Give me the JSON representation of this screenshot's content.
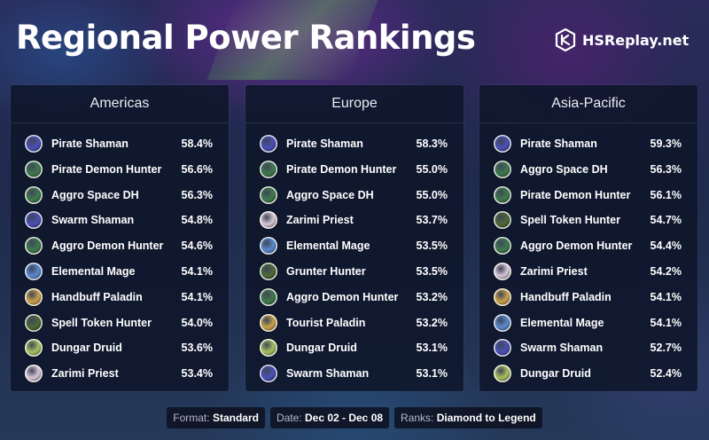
{
  "title": "Regional Power Rankings",
  "brand": {
    "name": "HSReplay.net",
    "icon": "hsreplay-logo-icon"
  },
  "class_colors": {
    "shaman": "#4a4fb8",
    "demon_hunter": "#3f7a4e",
    "priest": "#d9c8d8",
    "mage": "#5a8ad0",
    "paladin": "#c9a24a",
    "hunter": "#4d6a36",
    "druid": "#a8c060"
  },
  "regions": [
    {
      "name": "Americas",
      "decks": [
        {
          "name": "Pirate Shaman",
          "winrate": "58.4%",
          "class": "shaman"
        },
        {
          "name": "Pirate Demon Hunter",
          "winrate": "56.6%",
          "class": "demon_hunter"
        },
        {
          "name": "Aggro Space DH",
          "winrate": "56.3%",
          "class": "demon_hunter"
        },
        {
          "name": "Swarm Shaman",
          "winrate": "54.8%",
          "class": "shaman"
        },
        {
          "name": "Aggro Demon Hunter",
          "winrate": "54.6%",
          "class": "demon_hunter"
        },
        {
          "name": "Elemental Mage",
          "winrate": "54.1%",
          "class": "mage"
        },
        {
          "name": "Handbuff Paladin",
          "winrate": "54.1%",
          "class": "paladin"
        },
        {
          "name": "Spell Token Hunter",
          "winrate": "54.0%",
          "class": "hunter"
        },
        {
          "name": "Dungar Druid",
          "winrate": "53.6%",
          "class": "druid"
        },
        {
          "name": "Zarimi Priest",
          "winrate": "53.4%",
          "class": "priest"
        }
      ]
    },
    {
      "name": "Europe",
      "decks": [
        {
          "name": "Pirate Shaman",
          "winrate": "58.3%",
          "class": "shaman"
        },
        {
          "name": "Pirate Demon Hunter",
          "winrate": "55.0%",
          "class": "demon_hunter"
        },
        {
          "name": "Aggro Space DH",
          "winrate": "55.0%",
          "class": "demon_hunter"
        },
        {
          "name": "Zarimi Priest",
          "winrate": "53.7%",
          "class": "priest"
        },
        {
          "name": "Elemental Mage",
          "winrate": "53.5%",
          "class": "mage"
        },
        {
          "name": "Grunter Hunter",
          "winrate": "53.5%",
          "class": "hunter"
        },
        {
          "name": "Aggro Demon Hunter",
          "winrate": "53.2%",
          "class": "demon_hunter"
        },
        {
          "name": "Tourist Paladin",
          "winrate": "53.2%",
          "class": "paladin"
        },
        {
          "name": "Dungar Druid",
          "winrate": "53.1%",
          "class": "druid"
        },
        {
          "name": "Swarm Shaman",
          "winrate": "53.1%",
          "class": "shaman"
        }
      ]
    },
    {
      "name": "Asia-Pacific",
      "decks": [
        {
          "name": "Pirate Shaman",
          "winrate": "59.3%",
          "class": "shaman"
        },
        {
          "name": "Aggro Space DH",
          "winrate": "56.3%",
          "class": "demon_hunter"
        },
        {
          "name": "Pirate Demon Hunter",
          "winrate": "56.1%",
          "class": "demon_hunter"
        },
        {
          "name": "Spell Token Hunter",
          "winrate": "54.7%",
          "class": "hunter"
        },
        {
          "name": "Aggro Demon Hunter",
          "winrate": "54.4%",
          "class": "demon_hunter"
        },
        {
          "name": "Zarimi Priest",
          "winrate": "54.2%",
          "class": "priest"
        },
        {
          "name": "Handbuff Paladin",
          "winrate": "54.1%",
          "class": "paladin"
        },
        {
          "name": "Elemental Mage",
          "winrate": "54.1%",
          "class": "mage"
        },
        {
          "name": "Swarm Shaman",
          "winrate": "52.7%",
          "class": "shaman"
        },
        {
          "name": "Dungar Druid",
          "winrate": "52.4%",
          "class": "druid"
        }
      ]
    }
  ],
  "filters": [
    {
      "label": "Format:",
      "value": "Standard"
    },
    {
      "label": "Date:",
      "value": "Dec 02 - Dec 08"
    },
    {
      "label": "Ranks:",
      "value": "Diamond to Legend"
    }
  ]
}
